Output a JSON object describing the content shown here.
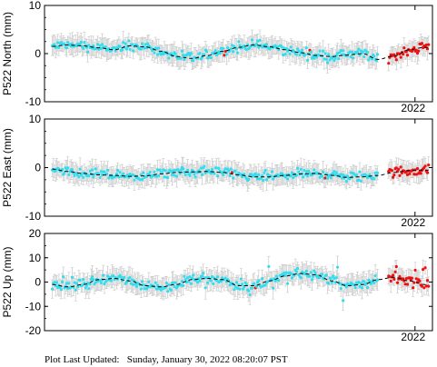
{
  "footer": "Plot Last Updated:   Sunday, January 30, 2022 08:20:07 PST",
  "colors": {
    "point": "#33ddee",
    "recent": "#ee1111",
    "errorbar": "#c8c8c8",
    "model": "#000000",
    "frame": "#000000"
  },
  "chart_data": [
    {
      "type": "scatter",
      "ylabel": "P522 North (mm)",
      "ylim": [
        -10,
        10
      ],
      "yticks": [
        -10,
        0,
        10
      ],
      "xtick_label": "2022",
      "grid": false,
      "series": [
        {
          "name": "",
          "x": [
            0.02,
            0.06,
            0.1,
            0.14,
            0.18,
            0.22,
            0.26,
            0.3,
            0.34,
            0.38,
            0.42,
            0.46,
            0.5,
            0.54,
            0.58,
            0.62,
            0.66,
            0.7,
            0.74,
            0.78,
            0.82,
            0.86,
            0.9,
            0.94,
            0.98
          ],
          "y": [
            1.5,
            1.8,
            1.6,
            1.2,
            0.8,
            1.6,
            1.4,
            0.5,
            -0.6,
            -1.0,
            -0.4,
            0.5,
            1.3,
            1.8,
            1.4,
            0.8,
            0.2,
            -0.4,
            -0.6,
            -0.3,
            0.0,
            -1.2,
            -0.5,
            0.8,
            1.3
          ]
        }
      ]
    },
    {
      "type": "scatter",
      "ylabel": "P522 East (mm)",
      "ylim": [
        -10,
        10
      ],
      "yticks": [
        -10,
        0,
        10
      ],
      "xtick_label": "2022",
      "grid": false,
      "series": [
        {
          "name": "",
          "x": [
            0.02,
            0.06,
            0.1,
            0.14,
            0.18,
            0.22,
            0.26,
            0.3,
            0.34,
            0.38,
            0.42,
            0.46,
            0.5,
            0.54,
            0.58,
            0.62,
            0.66,
            0.7,
            0.74,
            0.78,
            0.82,
            0.86,
            0.9,
            0.94,
            0.98
          ],
          "y": [
            -0.3,
            -0.8,
            -1.2,
            -1.5,
            -1.6,
            -1.8,
            -1.7,
            -1.3,
            -1.0,
            -0.9,
            -0.8,
            -1.0,
            -1.5,
            -1.9,
            -1.9,
            -1.6,
            -1.3,
            -1.2,
            -1.6,
            -2.0,
            -1.9,
            -1.6,
            -1.0,
            -0.6,
            -0.5
          ]
        }
      ]
    },
    {
      "type": "scatter",
      "ylabel": "P522 Up (mm)",
      "ylim": [
        -20,
        20
      ],
      "yticks": [
        -20,
        -10,
        0,
        10,
        20
      ],
      "xtick_label": "2022",
      "grid": false,
      "series": [
        {
          "name": "",
          "x": [
            0.02,
            0.06,
            0.1,
            0.14,
            0.18,
            0.22,
            0.26,
            0.3,
            0.34,
            0.38,
            0.42,
            0.46,
            0.5,
            0.54,
            0.58,
            0.62,
            0.66,
            0.7,
            0.74,
            0.78,
            0.82,
            0.86,
            0.9,
            0.94,
            0.98
          ],
          "y": [
            -1.0,
            -2.0,
            -1.0,
            1.0,
            1.5,
            0.5,
            -1.5,
            -2.0,
            -1.0,
            1.0,
            1.5,
            1.0,
            -1.5,
            -1.5,
            0.5,
            2.5,
            3.5,
            3.0,
            0.5,
            -1.5,
            -1.0,
            1.0,
            2.0,
            0.5,
            -1.0
          ]
        }
      ]
    }
  ]
}
